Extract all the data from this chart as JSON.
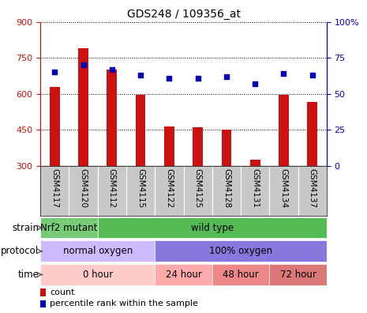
{
  "title": "GDS248 / 109356_at",
  "samples": [
    "GSM4117",
    "GSM4120",
    "GSM4112",
    "GSM4115",
    "GSM4122",
    "GSM4125",
    "GSM4128",
    "GSM4131",
    "GSM4134",
    "GSM4137"
  ],
  "counts": [
    630,
    790,
    700,
    597,
    465,
    462,
    450,
    327,
    597,
    565
  ],
  "percentiles": [
    65,
    70,
    67,
    63,
    61,
    61,
    62,
    57,
    64,
    63
  ],
  "ymin": 300,
  "ymax": 900,
  "yticks": [
    300,
    450,
    600,
    750,
    900
  ],
  "y2min": 0,
  "y2max": 100,
  "y2ticks": [
    0,
    25,
    50,
    75,
    100
  ],
  "bar_color": "#cc1111",
  "dot_color": "#0000bb",
  "bar_width": 0.35,
  "strain_labels": [
    {
      "text": "Nrf2 mutant",
      "start": 0,
      "end": 2,
      "color": "#77cc77"
    },
    {
      "text": "wild type",
      "start": 2,
      "end": 10,
      "color": "#55bb55"
    }
  ],
  "protocol_labels": [
    {
      "text": "normal oxygen",
      "start": 0,
      "end": 4,
      "color": "#ccbbff"
    },
    {
      "text": "100% oxygen",
      "start": 4,
      "end": 10,
      "color": "#8877dd"
    }
  ],
  "time_labels": [
    {
      "text": "0 hour",
      "start": 0,
      "end": 4,
      "color": "#ffcccc"
    },
    {
      "text": "24 hour",
      "start": 4,
      "end": 6,
      "color": "#ffaaaa"
    },
    {
      "text": "48 hour",
      "start": 6,
      "end": 8,
      "color": "#ee8888"
    },
    {
      "text": "72 hour",
      "start": 8,
      "end": 10,
      "color": "#dd7777"
    }
  ],
  "legend_count_color": "#cc1111",
  "legend_dot_color": "#0000bb",
  "tick_area_color": "#c8c8c8",
  "title_fontsize": 10,
  "axis_fontsize": 8,
  "tick_fontsize": 7.5,
  "annot_fontsize": 8.5,
  "legend_fontsize": 8
}
